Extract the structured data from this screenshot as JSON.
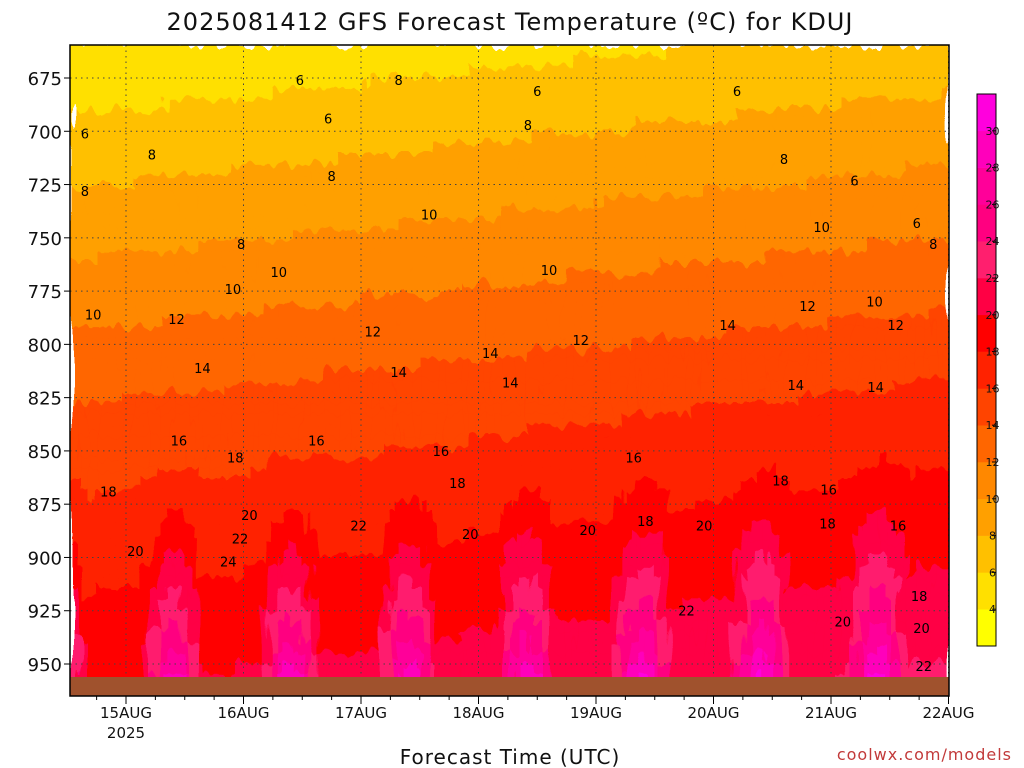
{
  "chart_data": {
    "type": "heatmap",
    "title": "2025081412 GFS Forecast Temperature (ºC) for KDUJ",
    "xlabel": "Forecast Time (UTC)",
    "credit": "coolwx.com/models",
    "x_ticks": [
      {
        "label": "15AUG",
        "sub": "2025",
        "t": 0
      },
      {
        "label": "16AUG",
        "sub": "",
        "t": 1
      },
      {
        "label": "17AUG",
        "sub": "",
        "t": 2
      },
      {
        "label": "18AUG",
        "sub": "",
        "t": 3
      },
      {
        "label": "19AUG",
        "sub": "",
        "t": 4
      },
      {
        "label": "20AUG",
        "sub": "",
        "t": 5
      },
      {
        "label": "21AUG",
        "sub": "",
        "t": 6
      },
      {
        "label": "22AUG",
        "sub": "",
        "t": 7
      }
    ],
    "y_ticks": [
      675,
      700,
      725,
      750,
      775,
      800,
      825,
      850,
      875,
      900,
      925,
      950
    ],
    "ylim": [
      960,
      660
    ],
    "xlim_days": [
      -0.5,
      7
    ],
    "colorbar": {
      "levels": [
        4,
        6,
        8,
        10,
        12,
        14,
        16,
        18,
        20,
        22,
        24,
        26,
        28,
        30
      ],
      "colors": [
        "#ffff00",
        "#ffe000",
        "#ffc000",
        "#ffa000",
        "#ff8800",
        "#ff6600",
        "#ff4400",
        "#ff2200",
        "#ff0000",
        "#ff0044",
        "#ff1f6e",
        "#ff0080",
        "#ff0099",
        "#ff00bb",
        "#ff00dd"
      ]
    },
    "contour_labels": [
      {
        "v": "6",
        "t": -0.35,
        "p": 701
      },
      {
        "v": "6",
        "t": 1.48,
        "p": 676
      },
      {
        "v": "6",
        "t": 1.72,
        "p": 694
      },
      {
        "v": "6",
        "t": 3.5,
        "p": 681
      },
      {
        "v": "6",
        "t": 5.2,
        "p": 681
      },
      {
        "v": "6",
        "t": 6.2,
        "p": 723
      },
      {
        "v": "6",
        "t": 6.73,
        "p": 743
      },
      {
        "v": "8",
        "t": -0.35,
        "p": 728
      },
      {
        "v": "8",
        "t": 0.22,
        "p": 711
      },
      {
        "v": "8",
        "t": 0.98,
        "p": 753
      },
      {
        "v": "8",
        "t": 1.75,
        "p": 721
      },
      {
        "v": "8",
        "t": 2.32,
        "p": 676
      },
      {
        "v": "8",
        "t": 3.42,
        "p": 697
      },
      {
        "v": "8",
        "t": 5.6,
        "p": 713
      },
      {
        "v": "8",
        "t": 6.87,
        "p": 753
      },
      {
        "v": "10",
        "t": -0.28,
        "p": 786
      },
      {
        "v": "10",
        "t": 0.91,
        "p": 774
      },
      {
        "v": "10",
        "t": 1.3,
        "p": 766
      },
      {
        "v": "10",
        "t": 2.58,
        "p": 739
      },
      {
        "v": "10",
        "t": 3.6,
        "p": 765
      },
      {
        "v": "10",
        "t": 5.92,
        "p": 745
      },
      {
        "v": "10",
        "t": 6.37,
        "p": 780
      },
      {
        "v": "12",
        "t": 0.43,
        "p": 788
      },
      {
        "v": "12",
        "t": 2.1,
        "p": 794
      },
      {
        "v": "12",
        "t": 3.87,
        "p": 798
      },
      {
        "v": "12",
        "t": 5.8,
        "p": 782
      },
      {
        "v": "12",
        "t": 6.55,
        "p": 791
      },
      {
        "v": "14",
        "t": 0.65,
        "p": 811
      },
      {
        "v": "14",
        "t": 2.32,
        "p": 813
      },
      {
        "v": "14",
        "t": 3.1,
        "p": 804
      },
      {
        "v": "14",
        "t": 3.27,
        "p": 818
      },
      {
        "v": "14",
        "t": 5.12,
        "p": 791
      },
      {
        "v": "14",
        "t": 5.7,
        "p": 819
      },
      {
        "v": "14",
        "t": 6.38,
        "p": 820
      },
      {
        "v": "16",
        "t": 0.45,
        "p": 845
      },
      {
        "v": "16",
        "t": 1.62,
        "p": 845
      },
      {
        "v": "16",
        "t": 2.68,
        "p": 850
      },
      {
        "v": "16",
        "t": 4.32,
        "p": 853
      },
      {
        "v": "16",
        "t": 5.98,
        "p": 868
      },
      {
        "v": "16",
        "t": 6.57,
        "p": 885
      },
      {
        "v": "18",
        "t": -0.15,
        "p": 869
      },
      {
        "v": "18",
        "t": 0.93,
        "p": 853
      },
      {
        "v": "18",
        "t": 2.82,
        "p": 865
      },
      {
        "v": "18",
        "t": 4.42,
        "p": 883
      },
      {
        "v": "18",
        "t": 5.57,
        "p": 864
      },
      {
        "v": "18",
        "t": 5.97,
        "p": 884
      },
      {
        "v": "18",
        "t": 6.75,
        "p": 918
      },
      {
        "v": "20",
        "t": 0.08,
        "p": 897
      },
      {
        "v": "20",
        "t": 1.05,
        "p": 880
      },
      {
        "v": "20",
        "t": 2.93,
        "p": 889
      },
      {
        "v": "20",
        "t": 3.93,
        "p": 887
      },
      {
        "v": "20",
        "t": 4.92,
        "p": 885
      },
      {
        "v": "20",
        "t": 6.1,
        "p": 930
      },
      {
        "v": "20",
        "t": 6.77,
        "p": 933
      },
      {
        "v": "22",
        "t": 0.97,
        "p": 891
      },
      {
        "v": "22",
        "t": 1.98,
        "p": 885
      },
      {
        "v": "22",
        "t": 4.77,
        "p": 925
      },
      {
        "v": "22",
        "t": 6.79,
        "p": 951
      },
      {
        "v": "24",
        "t": 0.87,
        "p": 902
      }
    ]
  }
}
